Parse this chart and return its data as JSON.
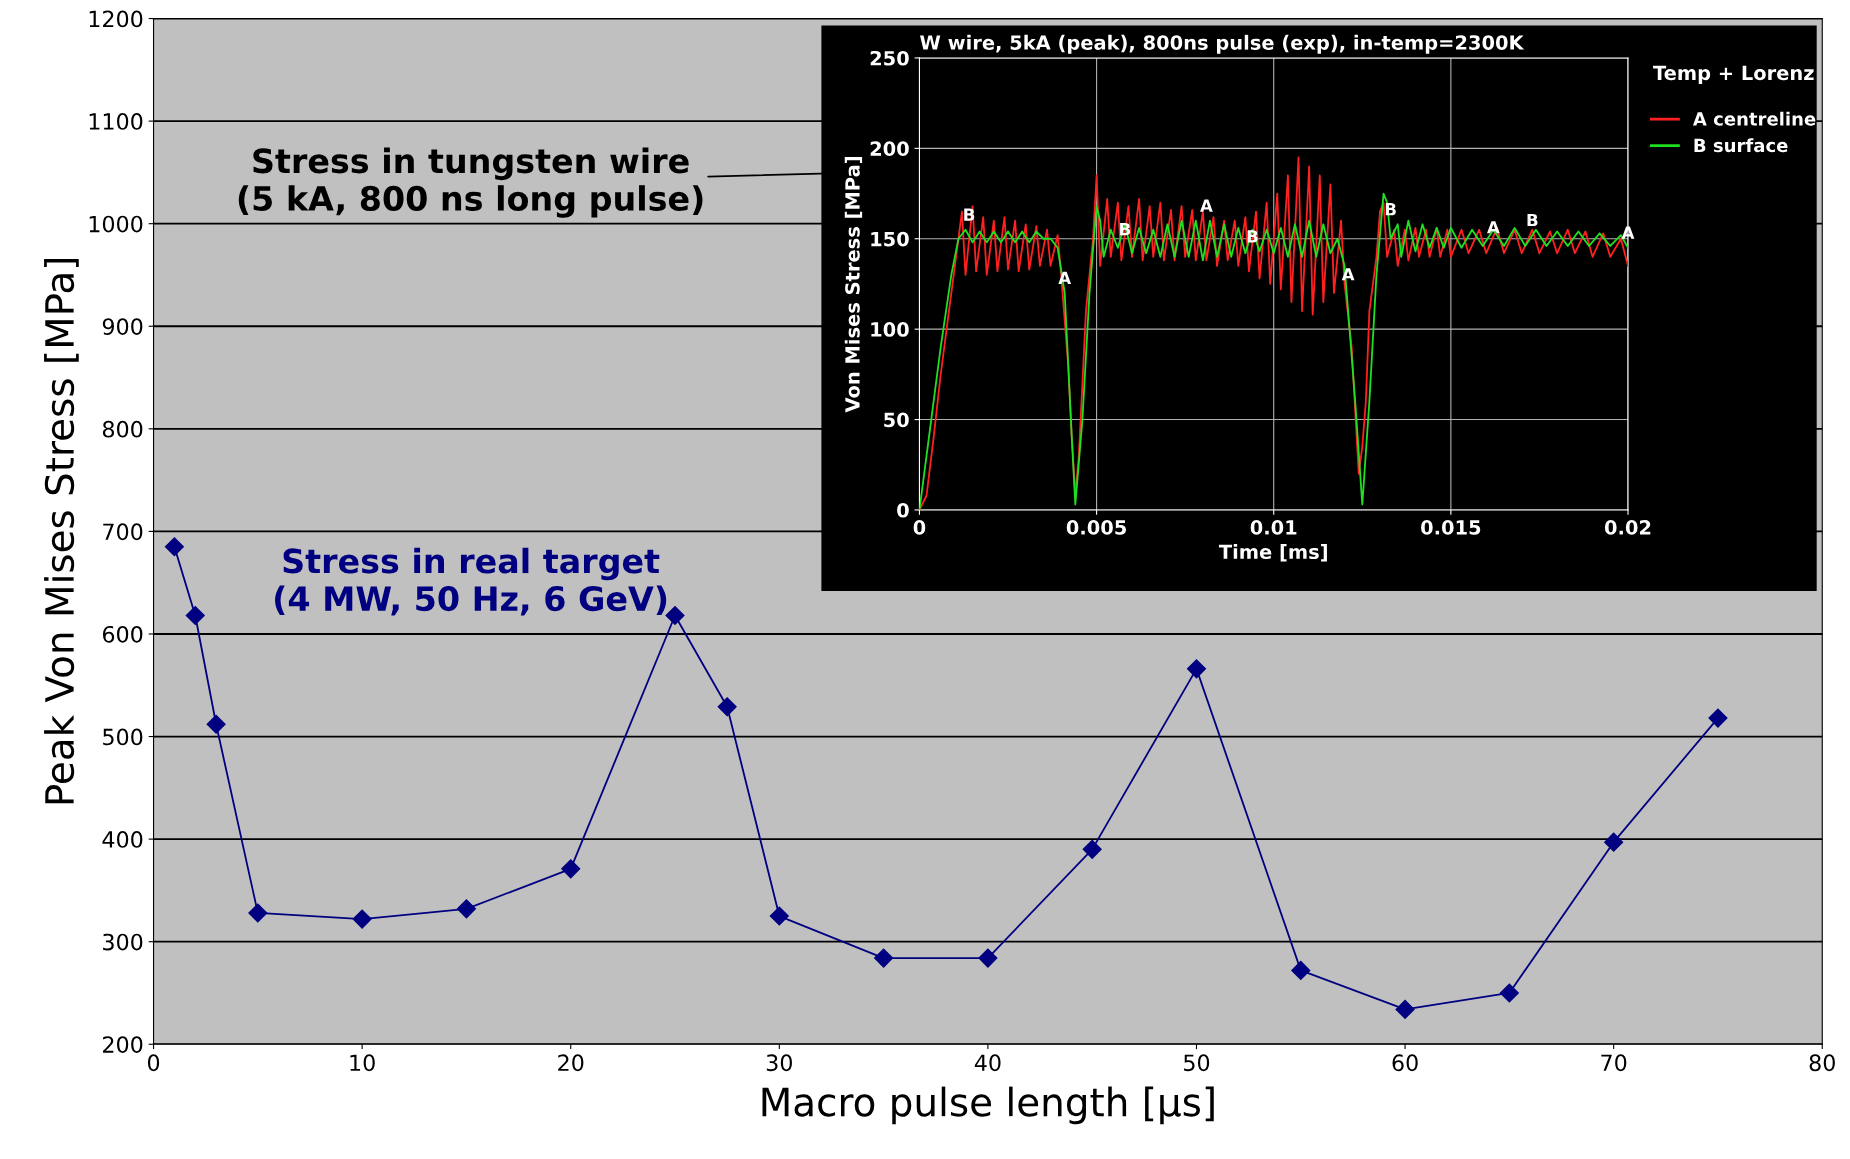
{
  "chart_data": [
    {
      "type": "line",
      "xlabel": "Macro pulse length [μs]",
      "ylabel": "Peak Von Mises Stress [MPa]",
      "x": [
        1,
        2,
        3,
        5,
        10,
        15,
        20,
        25,
        27.5,
        30,
        35,
        40,
        45,
        50,
        55,
        60,
        65,
        70,
        75
      ],
      "series": [
        {
          "color": "#000080",
          "values": [
            685,
            618,
            512,
            328,
            322,
            332,
            371,
            618,
            529,
            325,
            284,
            284,
            390,
            566,
            272,
            234,
            250,
            397,
            518
          ]
        }
      ],
      "xlim": [
        0,
        80
      ],
      "xticks": [
        0,
        10,
        20,
        30,
        40,
        50,
        60,
        70,
        80
      ],
      "ylim": [
        200,
        1200
      ],
      "yticks": [
        200,
        300,
        400,
        500,
        600,
        700,
        800,
        900,
        1000,
        1100,
        1200
      ],
      "grid": "y",
      "marker": "diamond",
      "line_style": "solid",
      "legend": false,
      "annotations": [
        "Stress in tungsten wire\n(5 kA, 800 ns long pulse)",
        "Stress in real target\n(4 MW, 50 Hz, 6 GeV)"
      ]
    },
    {
      "type": "line",
      "title": "W wire, 5kA (peak), 800ns pulse (exp), in-temp=2300K",
      "xlabel": "Time [ms]",
      "ylabel": "Von Mises Stress [MPa]",
      "legend_title": "Temp + Lorenz",
      "series": [
        {
          "name": "A centreline",
          "color": "#ff2020",
          "x": [
            0,
            0.0002,
            0.0004,
            0.0006,
            0.0008,
            0.001,
            0.0012,
            0.0013,
            0.0015,
            0.0016,
            0.0018,
            0.0019,
            0.0021,
            0.0022,
            0.0024,
            0.0025,
            0.0027,
            0.0028,
            0.003,
            0.0031,
            0.0033,
            0.0034,
            0.0036,
            0.0037,
            0.0039,
            0.004,
            0.0042,
            0.0043,
            0.0044,
            0.0045,
            0.0047,
            0.0049,
            0.005,
            0.0051,
            0.0053,
            0.0054,
            0.0056,
            0.0057,
            0.0059,
            0.006,
            0.0062,
            0.0063,
            0.0065,
            0.0066,
            0.0068,
            0.0069,
            0.0071,
            0.0072,
            0.0074,
            0.0075,
            0.0077,
            0.0078,
            0.008,
            0.0081,
            0.0083,
            0.0084,
            0.0086,
            0.0087,
            0.0089,
            0.009,
            0.0092,
            0.0093,
            0.0095,
            0.0096,
            0.0098,
            0.0099,
            0.0101,
            0.0102,
            0.0104,
            0.0105,
            0.0107,
            0.0108,
            0.011,
            0.0111,
            0.0113,
            0.0114,
            0.0116,
            0.0117,
            0.0119,
            0.012,
            0.0122,
            0.0123,
            0.0124,
            0.0125,
            0.0126,
            0.0127,
            0.0129,
            0.013,
            0.0131,
            0.0132,
            0.0134,
            0.0135,
            0.0137,
            0.0138,
            0.014,
            0.0141,
            0.0143,
            0.0144,
            0.0146,
            0.0147,
            0.0149,
            0.015,
            0.0153,
            0.0155,
            0.0158,
            0.016,
            0.0163,
            0.0165,
            0.0168,
            0.017,
            0.0173,
            0.0175,
            0.0178,
            0.018,
            0.0183,
            0.0185,
            0.0188,
            0.019,
            0.0193,
            0.0195,
            0.0198,
            0.02
          ],
          "values": [
            0,
            8,
            40,
            75,
            105,
            135,
            165,
            130,
            168,
            132,
            162,
            130,
            160,
            132,
            162,
            133,
            160,
            132,
            158,
            133,
            157,
            135,
            155,
            135,
            152,
            130,
            80,
            40,
            8,
            30,
            110,
            150,
            185,
            135,
            172,
            140,
            170,
            138,
            168,
            140,
            172,
            138,
            168,
            140,
            170,
            138,
            166,
            138,
            168,
            140,
            166,
            138,
            165,
            138,
            162,
            135,
            160,
            138,
            160,
            135,
            162,
            132,
            165,
            128,
            170,
            125,
            175,
            122,
            185,
            115,
            195,
            110,
            190,
            108,
            185,
            115,
            180,
            120,
            160,
            125,
            90,
            55,
            20,
            35,
            60,
            110,
            140,
            165,
            170,
            140,
            155,
            135,
            155,
            138,
            156,
            140,
            155,
            140,
            156,
            140,
            155,
            140,
            155,
            142,
            155,
            142,
            156,
            142,
            155,
            142,
            155,
            142,
            154,
            142,
            155,
            142,
            154,
            140,
            153,
            140,
            150,
            135
          ]
        },
        {
          "name": "B surface",
          "color": "#20e020",
          "x": [
            0,
            0.0003,
            0.0006,
            0.0009,
            0.0011,
            0.0013,
            0.0015,
            0.0017,
            0.0019,
            0.0021,
            0.0023,
            0.0025,
            0.0027,
            0.0029,
            0.0031,
            0.0033,
            0.0035,
            0.0037,
            0.0039,
            0.0041,
            0.0042,
            0.0043,
            0.0044,
            0.0046,
            0.0048,
            0.005,
            0.0051,
            0.0052,
            0.0054,
            0.0056,
            0.0058,
            0.006,
            0.0062,
            0.0064,
            0.0066,
            0.0068,
            0.007,
            0.0072,
            0.0074,
            0.0076,
            0.0078,
            0.008,
            0.0082,
            0.0084,
            0.0086,
            0.0088,
            0.009,
            0.0092,
            0.0094,
            0.0096,
            0.0098,
            0.01,
            0.0102,
            0.0104,
            0.0106,
            0.0108,
            0.011,
            0.0112,
            0.0114,
            0.0116,
            0.0118,
            0.012,
            0.0121,
            0.0123,
            0.0125,
            0.0127,
            0.0129,
            0.0131,
            0.0132,
            0.0133,
            0.0135,
            0.0136,
            0.0138,
            0.014,
            0.0142,
            0.0144,
            0.0146,
            0.0148,
            0.015,
            0.0153,
            0.0156,
            0.0159,
            0.0162,
            0.0165,
            0.0168,
            0.0171,
            0.0174,
            0.0177,
            0.018,
            0.0183,
            0.0186,
            0.0189,
            0.0192,
            0.0195,
            0.0198,
            0.02
          ],
          "values": [
            0,
            45,
            90,
            130,
            150,
            155,
            148,
            154,
            148,
            154,
            148,
            154,
            148,
            154,
            148,
            154,
            150,
            150,
            145,
            120,
            80,
            40,
            3,
            50,
            120,
            168,
            160,
            140,
            155,
            145,
            158,
            142,
            156,
            142,
            155,
            140,
            158,
            140,
            160,
            140,
            160,
            138,
            160,
            140,
            158,
            140,
            156,
            142,
            155,
            143,
            155,
            142,
            156,
            140,
            158,
            140,
            160,
            140,
            158,
            142,
            150,
            135,
            110,
            60,
            3,
            60,
            130,
            175,
            170,
            150,
            158,
            140,
            160,
            143,
            158,
            145,
            156,
            145,
            156,
            145,
            155,
            146,
            155,
            146,
            156,
            146,
            155,
            146,
            154,
            146,
            154,
            146,
            153,
            146,
            152,
            145
          ]
        }
      ],
      "xlim": [
        0,
        0.02
      ],
      "xticks": [
        0,
        0.005,
        0.01,
        0.015,
        0.02
      ],
      "ylim": [
        0,
        250
      ],
      "yticks": [
        0,
        50,
        100,
        150,
        200,
        250
      ],
      "grid": true,
      "legend": "right",
      "marker": "none",
      "line_style": "solid",
      "annotations": [
        {
          "text": "B",
          "x": 0.0014,
          "y": 155
        },
        {
          "text": "A",
          "x": 0.0041,
          "y": 120
        },
        {
          "text": "B",
          "x": 0.0058,
          "y": 147
        },
        {
          "text": "A",
          "x": 0.0081,
          "y": 160
        },
        {
          "text": "B",
          "x": 0.0094,
          "y": 143
        },
        {
          "text": "A",
          "x": 0.0121,
          "y": 122
        },
        {
          "text": "B",
          "x": 0.0133,
          "y": 158
        },
        {
          "text": "A",
          "x": 0.0162,
          "y": 148
        },
        {
          "text": "B",
          "x": 0.0173,
          "y": 152
        },
        {
          "text": "A",
          "x": 0.02,
          "y": 145
        }
      ]
    }
  ]
}
